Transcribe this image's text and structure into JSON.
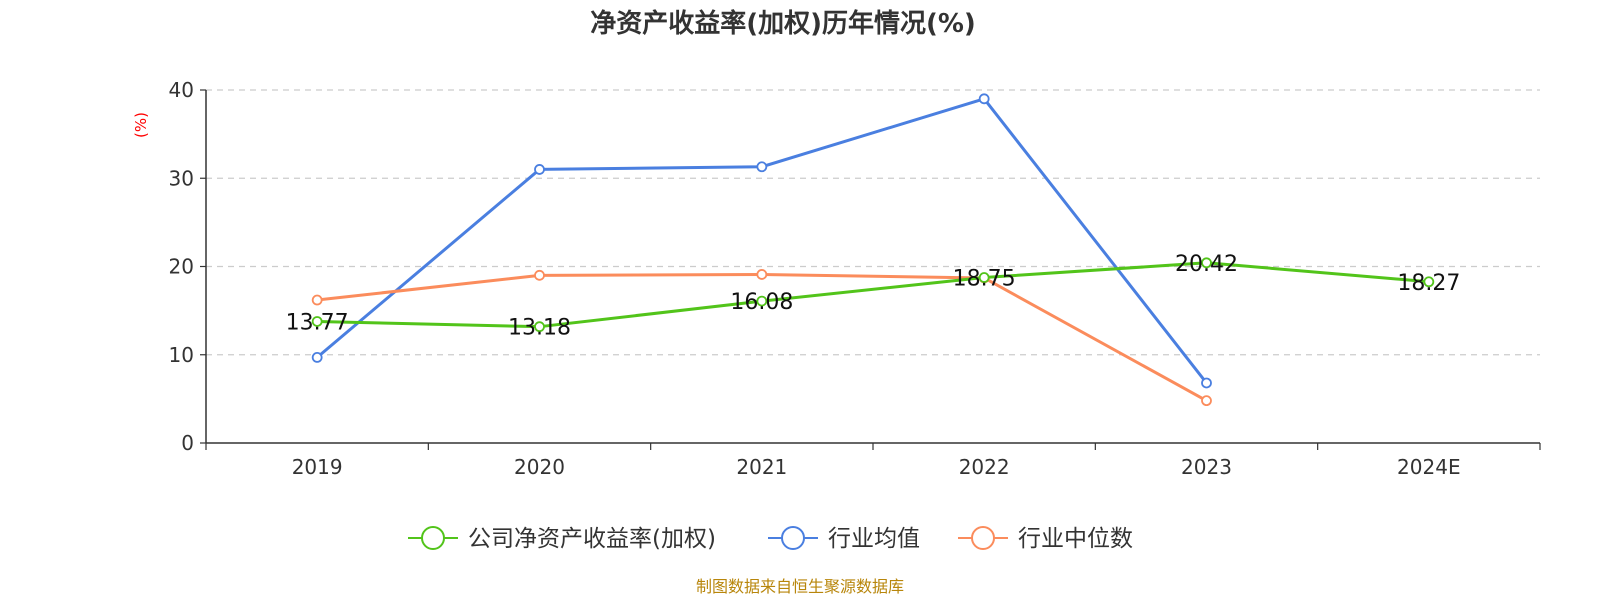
{
  "chart_data": {
    "type": "line",
    "title": "净资产收益率(加权)历年情况(%)",
    "ylabel": "(%)",
    "xlabel": "",
    "ylim": [
      0,
      40
    ],
    "yticks": [
      0,
      10,
      20,
      30,
      40
    ],
    "categories": [
      "2019",
      "2020",
      "2021",
      "2022",
      "2023",
      "2024E"
    ],
    "grid": true,
    "legend_position": "bottom",
    "series": [
      {
        "name": "公司净资产收益率(加权)",
        "color": "#52c41a",
        "values": [
          13.77,
          13.18,
          16.08,
          18.75,
          20.42,
          18.27
        ],
        "labels": [
          "13.77",
          "13.18",
          "16.08",
          "18.75",
          "20.42",
          "18.27"
        ]
      },
      {
        "name": "行业均值",
        "color": "#4a7fe0",
        "values": [
          9.7,
          31.0,
          31.3,
          39.0,
          6.8,
          null
        ]
      },
      {
        "name": "行业中位数",
        "color": "#fb8c5c",
        "values": [
          16.2,
          19.0,
          19.1,
          18.7,
          4.8,
          null
        ]
      }
    ],
    "source": "制图数据来自恒生聚源数据库",
    "colors": {
      "axis": "#333333",
      "grid": "#cccccc",
      "ylabel": "#ff0000",
      "source": "#b8860b",
      "title": "#333333"
    }
  }
}
